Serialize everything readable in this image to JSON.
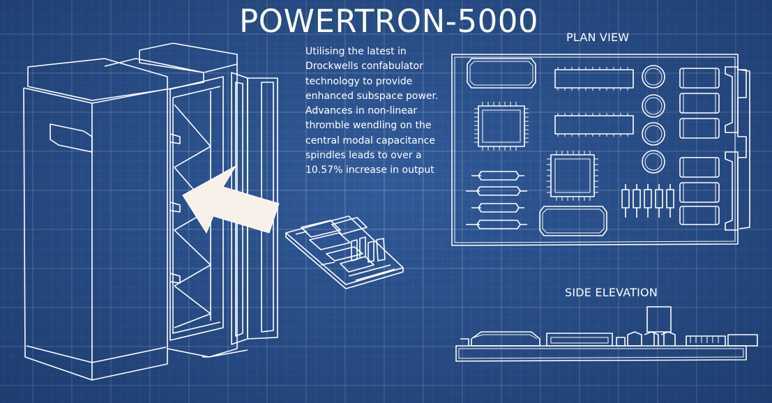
{
  "title": "POWERTRON-5000",
  "description": [
    "Utilising the latest in Drockwells confabulator technology to provide enhanced subspace power.",
    "Advances in non-linear thromble wendling on the central modal capacitance spindles leads to over a 10.57% increase in output"
  ],
  "views": {
    "plan": "PLAN VIEW",
    "side": "SIDE ELEVATION"
  },
  "colors": {
    "background": "#2d5592",
    "line": "#ffffff",
    "arrow": "#f8f1ea"
  },
  "icons": {
    "arrow": "arrow-pointing-into-slot"
  }
}
